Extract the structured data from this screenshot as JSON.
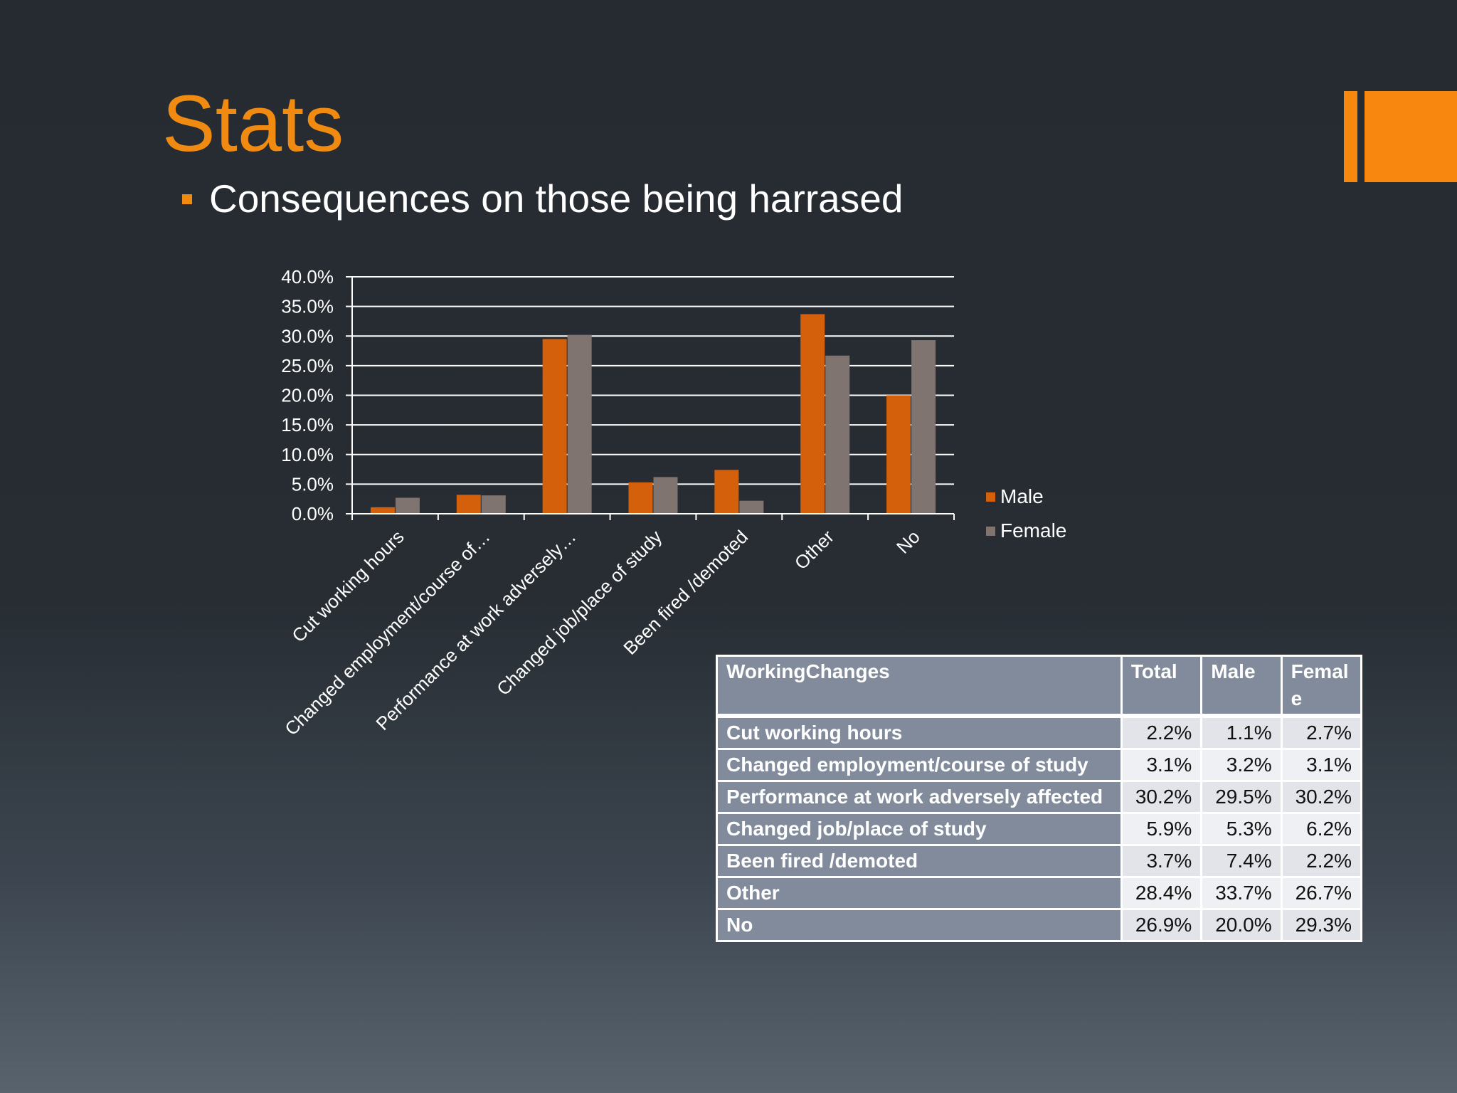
{
  "slide": {
    "title": "Stats",
    "bullet": "Consequences on those being harrased",
    "accent_color": "#f7870f"
  },
  "chart_data": {
    "type": "bar",
    "categories": [
      "Cut working hours",
      "Changed employment/course of…",
      "Performance at work adversely…",
      "Changed job/place of study",
      "Been fired /demoted",
      "Other",
      "No"
    ],
    "series": [
      {
        "name": "Male",
        "color": "#d4600b",
        "values": [
          1.1,
          3.2,
          29.5,
          5.3,
          7.4,
          33.7,
          20.0
        ]
      },
      {
        "name": "Female",
        "color": "#7f7470",
        "values": [
          2.7,
          3.1,
          30.2,
          6.2,
          2.2,
          26.7,
          29.3
        ]
      }
    ],
    "ylim": [
      0,
      40
    ],
    "yticks": [
      "0.0%",
      "5.0%",
      "10.0%",
      "15.0%",
      "20.0%",
      "25.0%",
      "30.0%",
      "35.0%",
      "40.0%"
    ],
    "grid": true,
    "legend_position": "right"
  },
  "table": {
    "headers": [
      "WorkingChanges",
      "Total",
      "Male",
      "Femal\ne"
    ],
    "rows": [
      [
        "Cut working hours",
        "2.2%",
        "1.1%",
        "2.7%"
      ],
      [
        "Changed employment/course of study",
        "3.1%",
        "3.2%",
        "3.1%"
      ],
      [
        "Performance at work adversely affected",
        "30.2%",
        "29.5%",
        "30.2%"
      ],
      [
        "Changed job/place of study",
        "5.9%",
        "5.3%",
        "6.2%"
      ],
      [
        "Been fired /demoted",
        "3.7%",
        "7.4%",
        "2.2%"
      ],
      [
        "Other",
        "28.4%",
        "33.7%",
        "26.7%"
      ],
      [
        "No",
        "26.9%",
        "20.0%",
        "29.3%"
      ]
    ]
  }
}
